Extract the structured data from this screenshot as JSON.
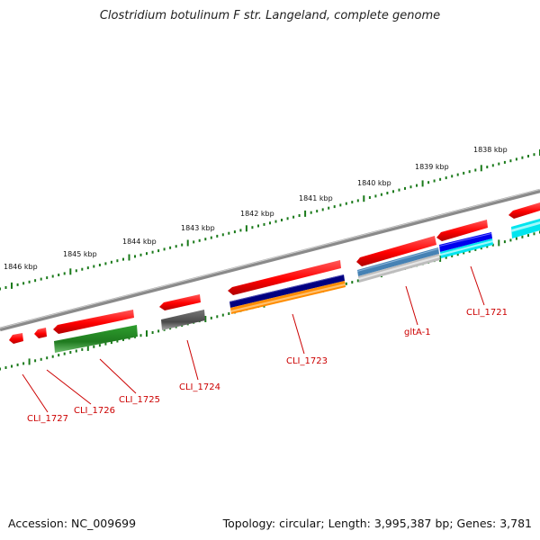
{
  "title": "Clostridium botulinum F str. Langeland, complete genome",
  "accession": "Accession: NC_009699",
  "topology": "Topology: circular; Length: 3,995,387 bp; Genes: 3,781",
  "ruler_labels": [
    "1846 kbp",
    "1845 kbp",
    "1844 kbp",
    "1843 kbp",
    "1842 kbp",
    "1841 kbp",
    "1840 kbp",
    "1839 kbp",
    "1838 kbp"
  ],
  "genes": [
    {
      "name": "CLI_1727",
      "color": "#ff0000"
    },
    {
      "name": "CLI_1726",
      "color": "#ff0000"
    },
    {
      "name": "CLI_1725",
      "color": "#ff0000"
    },
    {
      "name": "CLI_1724",
      "color": "#ff0000"
    },
    {
      "name": "CLI_1723",
      "color": "#ff0000"
    },
    {
      "name": "gltA-1",
      "color": "#ff0000"
    },
    {
      "name": "CLI_1721",
      "color": "#ff0000"
    }
  ],
  "feature_colors": {
    "gene": "#ff0000",
    "green_track": "#228b22",
    "gray_track": "#555555",
    "navy_track": "#000080",
    "orange_track": "#ff8c00",
    "steelblue_track": "#4682b4",
    "lightgray_track": "#bbbbbb",
    "blue_track": "#0000ee",
    "cyan_track": "#00e5ee",
    "tick": "#1a7a1a",
    "backbone": "#888888"
  }
}
